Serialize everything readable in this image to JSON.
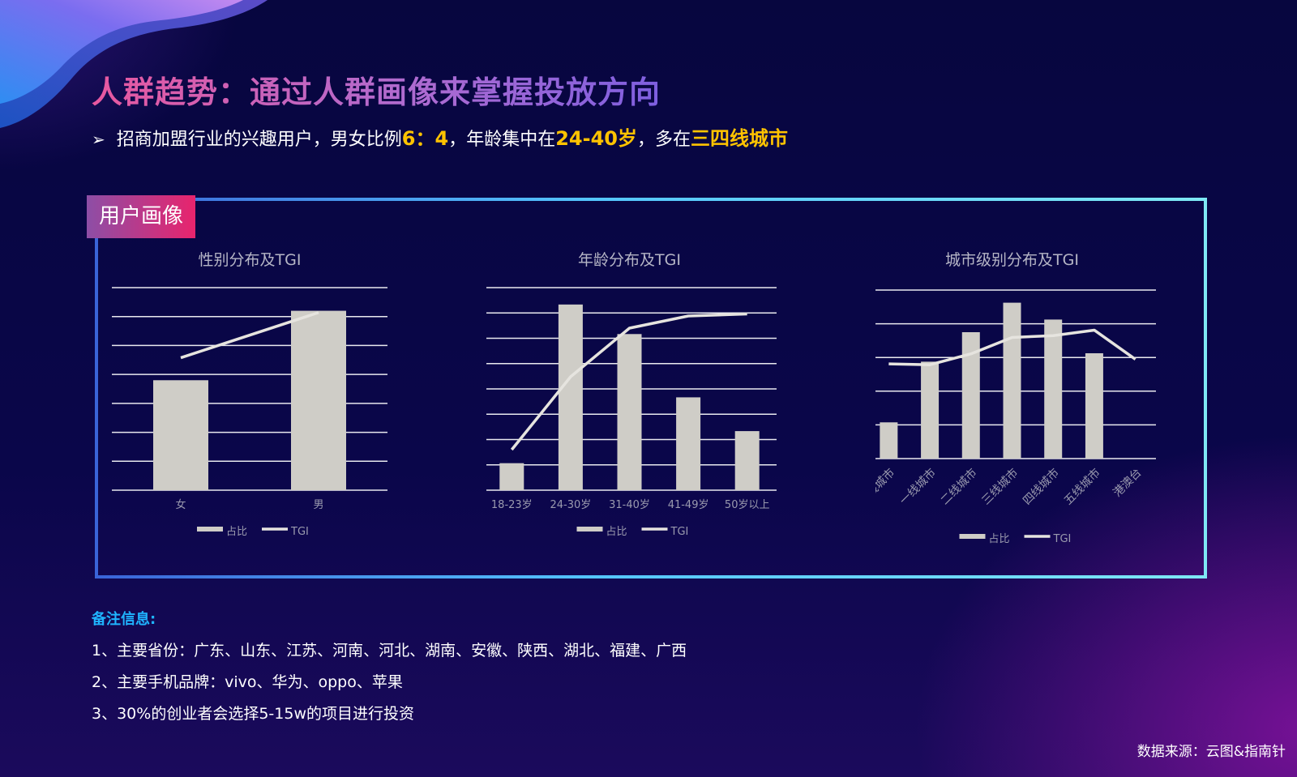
{
  "header": {
    "title": "人群趋势：通过人群画像来掌握投放方向",
    "summary_prefix": "招商加盟行业的兴趣用户，男女比例",
    "summary_ratio": "6：4",
    "summary_mid": "，年龄集中在",
    "summary_age": "24-40岁",
    "summary_mid2": "，多在",
    "summary_city": "三四线城市"
  },
  "panel": {
    "tag": "用户画像"
  },
  "chart_data": [
    {
      "type": "bar",
      "title": "性别分布及TGI",
      "categories": [
        "女",
        "男"
      ],
      "series": [
        {
          "name": "占比",
          "type": "bar",
          "values": [
            38,
            62
          ]
        },
        {
          "name": "TGI",
          "type": "line",
          "values": [
            85,
            114
          ]
        }
      ],
      "ylim_bar": [
        0,
        70
      ],
      "ylim_line": [
        0,
        130
      ],
      "grid": true,
      "legend": "bottom"
    },
    {
      "type": "bar",
      "title": "年龄分布及TGI",
      "categories": [
        "18-23岁",
        "24-30岁",
        "31-40岁",
        "41-49岁",
        "50岁以上"
      ],
      "series": [
        {
          "name": "占比",
          "type": "bar",
          "values": [
            3.2,
            22,
            18.5,
            11,
            7
          ]
        },
        {
          "name": "TGI",
          "type": "line",
          "values": [
            40,
            112,
            160,
            172,
            174
          ]
        }
      ],
      "ylim_bar": [
        0,
        24
      ],
      "ylim_line": [
        0,
        200
      ],
      "grid": true,
      "legend": "bottom"
    },
    {
      "type": "bar",
      "title": "城市级别分布及TGI",
      "categories": [
        "新一线城市",
        "一线城市",
        "二线城市",
        "三线城市",
        "四线城市",
        "五线城市",
        "港澳台"
      ],
      "series": [
        {
          "name": "占比",
          "type": "bar",
          "values": [
            4.3,
            11.5,
            15,
            18.5,
            16.5,
            12.5,
            0
          ]
        },
        {
          "name": "TGI",
          "type": "line",
          "values": [
            104,
            103,
            115,
            133,
            135,
            141,
            109
          ]
        }
      ],
      "ylim_bar": [
        0,
        20
      ],
      "ylim_line": [
        0,
        185
      ],
      "grid": true,
      "legend": "bottom"
    }
  ],
  "notes": {
    "title": "备注信息:",
    "items": [
      "1、主要省份：广东、山东、江苏、河南、河北、湖南、安徽、陕西、湖北、福建、广西",
      "2、主要手机品牌：vivo、华为、oppo、苹果",
      "3、30%的创业者会选择5-15w的项目进行投资"
    ]
  },
  "source": "数据来源：云图&指南针",
  "colors": {
    "bar": "#cfcdc7",
    "line": "#e6e4df",
    "grid": "#e9e9ef",
    "accent": "#ffc300",
    "note_title": "#1fb4ff"
  }
}
